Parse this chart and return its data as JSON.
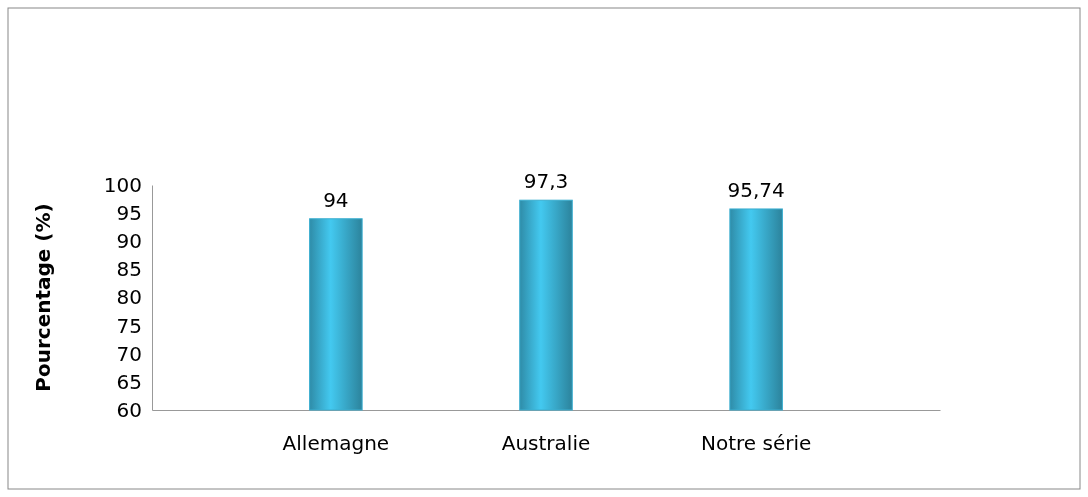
{
  "chart_data": {
    "type": "bar",
    "ylabel": "Pourcentage (%)",
    "categories": [
      "Allemagne",
      "Australie",
      "Notre série"
    ],
    "values": [
      94,
      97.3,
      95.74
    ],
    "value_labels": [
      "94",
      "97,3",
      "95,74"
    ],
    "color": "#3aaed0",
    "ylim": [
      60,
      100
    ],
    "yticks": [
      60,
      65,
      70,
      75,
      80,
      85,
      90,
      95,
      100
    ],
    "grid": false
  }
}
